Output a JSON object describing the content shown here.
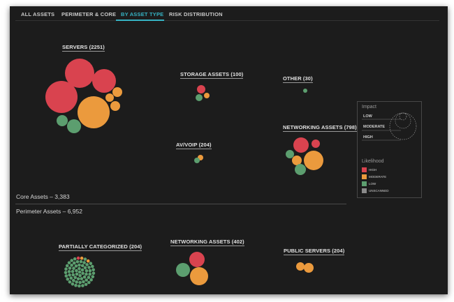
{
  "tabs": [
    {
      "label": "ALL ASSETS"
    },
    {
      "label": "PERIMETER & CORE"
    },
    {
      "label": "BY ASSET TYPE",
      "active": true
    },
    {
      "label": "RISK DISTRIBUTION"
    }
  ],
  "sections": {
    "core": "Core Assets – 3,383",
    "perimeter": "Perimeter Assets – 6,952"
  },
  "groups": {
    "servers": "SERVERS (2251)",
    "storage": "STORAGE ASSETS (100)",
    "other": "OTHER (30)",
    "networking_core": "NETWORKING ASSETS (798)",
    "avvoip": "AV/VOIP (204)",
    "partially": "PARTIALLY CATEGORIZED (204)",
    "networking_perimeter": "NETWORKING ASSETS (402)",
    "public_servers": "PUBLIC SERVERS (204)"
  },
  "legend": {
    "impact_title": "Impact",
    "impact_levels": [
      "LOW",
      "MODERATE",
      "HIGH"
    ],
    "likelihood_title": "Likelihood",
    "likelihood_levels": [
      {
        "label": "HIGH",
        "color": "#d9434f"
      },
      {
        "label": "MODERATE",
        "color": "#eb9a3d"
      },
      {
        "label": "LOW",
        "color": "#5c9e6f"
      },
      {
        "label": "UNSCANNED",
        "color": "#8a8a8a"
      }
    ]
  },
  "colors": {
    "high": "#d9434f",
    "moderate": "#eb9a3d",
    "low": "#5c9e6f",
    "accent": "#36b3c4"
  }
}
